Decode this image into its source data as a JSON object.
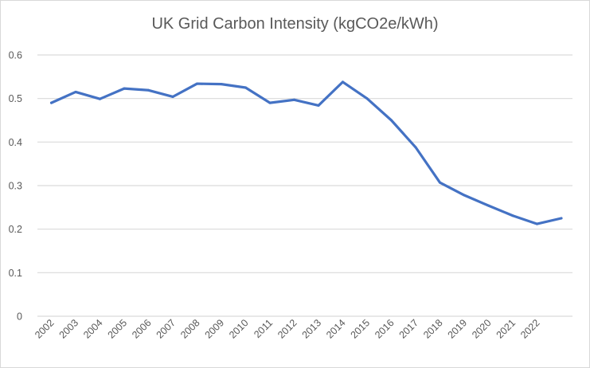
{
  "chart_data": {
    "type": "line",
    "title": "UK Grid Carbon Intensity (kgCO2e/kWh)",
    "xlabel": "",
    "ylabel": "",
    "categories": [
      "2002",
      "2003",
      "2004",
      "2005",
      "2006",
      "2007",
      "2008",
      "2009",
      "2010",
      "2011",
      "2012",
      "2013",
      "2014",
      "2015",
      "2016",
      "2017",
      "2018",
      "2019",
      "2020",
      "2021",
      "2022",
      ""
    ],
    "series": [
      {
        "values": [
          0.49,
          0.515,
          0.499,
          0.523,
          0.519,
          0.504,
          0.534,
          0.533,
          0.525,
          0.49,
          0.497,
          0.484,
          0.538,
          0.5,
          0.45,
          0.388,
          0.307,
          0.278,
          0.254,
          0.231,
          0.212,
          0.225
        ],
        "color": "#4472c4"
      }
    ],
    "ylim": [
      0,
      0.6
    ],
    "yticks": [
      "0",
      "0.1",
      "0.2",
      "0.3",
      "0.4",
      "0.5",
      "0.6"
    ],
    "grid": true,
    "legend": "none",
    "colors": {
      "line": "#4472c4",
      "grid": "#d9d9d9",
      "text": "#595959"
    }
  }
}
